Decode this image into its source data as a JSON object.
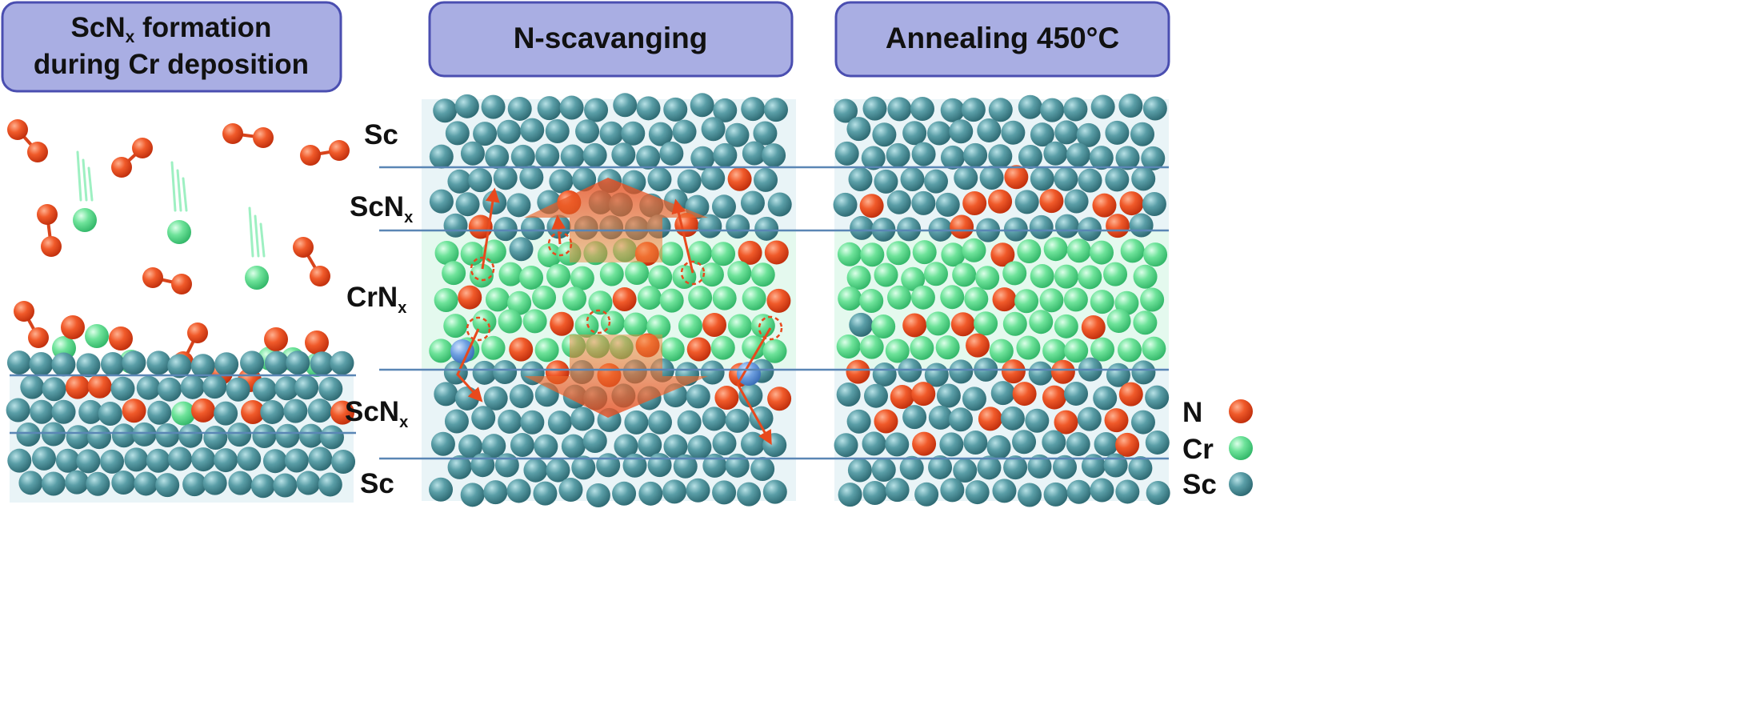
{
  "panels": [
    {
      "title_line1_main": "ScN",
      "title_line1_sub": "x",
      "title_line1_rest": " formation",
      "title_line2": "during Cr deposition"
    },
    {
      "title": "N-scavanging"
    },
    {
      "title": "Annealing 450°C"
    }
  ],
  "layer_labels": {
    "sc_top": "Sc",
    "scnx_top_main": "ScN",
    "scnx_top_sub": "x",
    "crnx_main": "CrN",
    "crnx_sub": "x",
    "scnx_bottom_main": "ScN",
    "scnx_bottom_sub": "x",
    "sc_bottom": "Sc"
  },
  "legend": [
    {
      "label": "N",
      "color": "#e8491d"
    },
    {
      "label": "Cr",
      "color": "#62d88f"
    },
    {
      "label": "Sc",
      "color": "#4b8f98"
    }
  ],
  "colors": {
    "header_fill": "#a9aee3",
    "header_stroke": "#4a4eb0",
    "panel_bg": "#e9f4f7",
    "cr_zone_bg": "#e4f9ee",
    "layer_line": "#5a86b5",
    "arrow": "#e8491d"
  }
}
